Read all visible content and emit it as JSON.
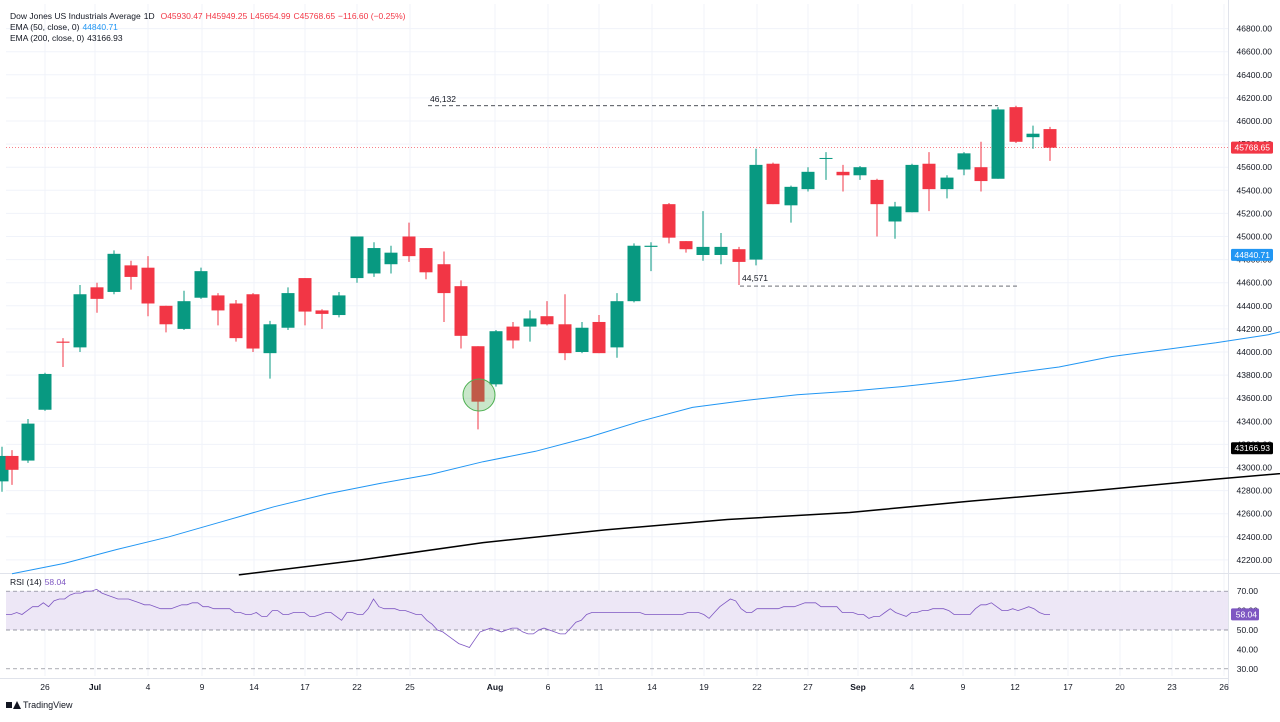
{
  "legend": {
    "symbol": "Dow Jones US Industrials Average",
    "interval": "1D",
    "open": "O45930.47",
    "high": "H45949.25",
    "low": "L45654.99",
    "close": "C45768.65",
    "change": "−116.60 (−0.25%)",
    "ema50_label": "EMA (50, close, 0)",
    "ema50_value": "44840.71",
    "ema200_label": "EMA (200, close, 0)",
    "ema200_value": "43166.93",
    "rsi_label": "RSI (14)",
    "rsi_value": "58.04"
  },
  "colors": {
    "up": "#089981",
    "down": "#f23645",
    "ema50": "#2196f3",
    "ema200": "#000000",
    "rsi": "#7e57c2",
    "rsi_band": "#ede7f6",
    "highlight": "#4caf50"
  },
  "branding": {
    "logo_text": "TradingView"
  },
  "chart_data": {
    "type": "candlestick",
    "title": "Dow Jones US Industrials Average, 1D",
    "price_axis": {
      "ticks": [
        "46800.00",
        "46600.00",
        "46400.00",
        "46200.00",
        "46000.00",
        "45800.00",
        "45600.00",
        "45400.00",
        "45200.00",
        "45000.00",
        "44800.00",
        "44600.00",
        "44400.00",
        "44200.00",
        "44000.00",
        "43800.00",
        "43600.00",
        "43400.00",
        "43200.00",
        "43000.00",
        "42800.00",
        "42600.00",
        "42400.00",
        "42200.00"
      ],
      "range": [
        42100,
        46950
      ]
    },
    "time_axis": {
      "labels": [
        "26",
        "Jul",
        "4",
        "9",
        "14",
        "17",
        "22",
        "25",
        "Aug",
        "6",
        "11",
        "14",
        "19",
        "22",
        "27",
        "Sep",
        "4",
        "9",
        "12",
        "17",
        "20",
        "23",
        "26"
      ],
      "bold": [
        "Jul",
        "Aug",
        "Sep"
      ]
    },
    "candles": [
      {
        "o": 42880,
        "h": 43180,
        "l": 42790,
        "c": 43100
      },
      {
        "o": 43100,
        "h": 43150,
        "l": 42850,
        "c": 42980
      },
      {
        "o": 43060,
        "h": 43420,
        "l": 43040,
        "c": 43380
      },
      {
        "o": 43500,
        "h": 43820,
        "l": 43490,
        "c": 43810
      },
      {
        "o": 44090,
        "h": 44120,
        "l": 43870,
        "c": 44080
      },
      {
        "o": 44040,
        "h": 44580,
        "l": 44000,
        "c": 44500
      },
      {
        "o": 44560,
        "h": 44600,
        "l": 44340,
        "c": 44460
      },
      {
        "o": 44520,
        "h": 44880,
        "l": 44500,
        "c": 44850
      },
      {
        "o": 44750,
        "h": 44790,
        "l": 44540,
        "c": 44650
      },
      {
        "o": 44730,
        "h": 44830,
        "l": 44310,
        "c": 44420
      },
      {
        "o": 44400,
        "h": 44400,
        "l": 44170,
        "c": 44240
      },
      {
        "o": 44200,
        "h": 44530,
        "l": 44190,
        "c": 44440
      },
      {
        "o": 44470,
        "h": 44730,
        "l": 44460,
        "c": 44700
      },
      {
        "o": 44490,
        "h": 44510,
        "l": 44230,
        "c": 44360
      },
      {
        "o": 44420,
        "h": 44450,
        "l": 44090,
        "c": 44120
      },
      {
        "o": 44500,
        "h": 44510,
        "l": 44000,
        "c": 44030
      },
      {
        "o": 43990,
        "h": 44270,
        "l": 43770,
        "c": 44240
      },
      {
        "o": 44210,
        "h": 44560,
        "l": 44190,
        "c": 44510
      },
      {
        "o": 44640,
        "h": 44640,
        "l": 44230,
        "c": 44350
      },
      {
        "o": 44360,
        "h": 44370,
        "l": 44200,
        "c": 44330
      },
      {
        "o": 44320,
        "h": 44520,
        "l": 44300,
        "c": 44490
      },
      {
        "o": 44640,
        "h": 45000,
        "l": 44600,
        "c": 45000
      },
      {
        "o": 44680,
        "h": 44950,
        "l": 44650,
        "c": 44900
      },
      {
        "o": 44760,
        "h": 44920,
        "l": 44680,
        "c": 44860
      },
      {
        "o": 45000,
        "h": 45120,
        "l": 44780,
        "c": 44830
      },
      {
        "o": 44900,
        "h": 44900,
        "l": 44630,
        "c": 44690
      },
      {
        "o": 44760,
        "h": 44870,
        "l": 44260,
        "c": 44510
      },
      {
        "o": 44570,
        "h": 44620,
        "l": 44030,
        "c": 44140
      },
      {
        "o": 44050,
        "h": 44050,
        "l": 43330,
        "c": 43570
      },
      {
        "o": 43720,
        "h": 44190,
        "l": 43700,
        "c": 44180
      },
      {
        "o": 44220,
        "h": 44260,
        "l": 44030,
        "c": 44100
      },
      {
        "o": 44220,
        "h": 44360,
        "l": 44090,
        "c": 44290
      },
      {
        "o": 44310,
        "h": 44440,
        "l": 44230,
        "c": 44240
      },
      {
        "o": 44240,
        "h": 44500,
        "l": 43930,
        "c": 43990
      },
      {
        "o": 44000,
        "h": 44260,
        "l": 43990,
        "c": 44210
      },
      {
        "o": 44260,
        "h": 44320,
        "l": 43990,
        "c": 43990
      },
      {
        "o": 44040,
        "h": 44510,
        "l": 43950,
        "c": 44440
      },
      {
        "o": 44440,
        "h": 44940,
        "l": 44430,
        "c": 44920
      },
      {
        "o": 44910,
        "h": 44950,
        "l": 44700,
        "c": 44920
      },
      {
        "o": 45280,
        "h": 45290,
        "l": 44940,
        "c": 44990
      },
      {
        "o": 44960,
        "h": 44960,
        "l": 44860,
        "c": 44890
      },
      {
        "o": 44840,
        "h": 45220,
        "l": 44790,
        "c": 44910
      },
      {
        "o": 44840,
        "h": 45030,
        "l": 44760,
        "c": 44910
      },
      {
        "o": 44890,
        "h": 44910,
        "l": 44580,
        "c": 44780
      },
      {
        "o": 44800,
        "h": 45760,
        "l": 44750,
        "c": 45620
      },
      {
        "o": 45630,
        "h": 45640,
        "l": 45280,
        "c": 45280
      },
      {
        "o": 45270,
        "h": 45440,
        "l": 45120,
        "c": 45430
      },
      {
        "o": 45410,
        "h": 45600,
        "l": 45390,
        "c": 45560
      },
      {
        "o": 45680,
        "h": 45730,
        "l": 45490,
        "c": 45680
      },
      {
        "o": 45560,
        "h": 45620,
        "l": 45390,
        "c": 45530
      },
      {
        "o": 45530,
        "h": 45610,
        "l": 45490,
        "c": 45600
      },
      {
        "o": 45490,
        "h": 45500,
        "l": 45000,
        "c": 45280
      },
      {
        "o": 45130,
        "h": 45300,
        "l": 44980,
        "c": 45260
      },
      {
        "o": 45210,
        "h": 45630,
        "l": 45210,
        "c": 45620
      },
      {
        "o": 45630,
        "h": 45730,
        "l": 45220,
        "c": 45410
      },
      {
        "o": 45410,
        "h": 45530,
        "l": 45330,
        "c": 45510
      },
      {
        "o": 45580,
        "h": 45730,
        "l": 45530,
        "c": 45720
      },
      {
        "o": 45600,
        "h": 45820,
        "l": 45390,
        "c": 45480
      },
      {
        "o": 45500,
        "h": 46120,
        "l": 45500,
        "c": 46100
      },
      {
        "o": 46120,
        "h": 46132,
        "l": 45810,
        "c": 45820
      },
      {
        "o": 45860,
        "h": 45960,
        "l": 45760,
        "c": 45890
      },
      {
        "o": 45930,
        "h": 45949,
        "l": 45655,
        "c": 45769
      }
    ],
    "ema50": [
      {
        "i": 0,
        "v": 42080
      },
      {
        "i": 3,
        "v": 42170
      },
      {
        "i": 6,
        "v": 42290
      },
      {
        "i": 9,
        "v": 42400
      },
      {
        "i": 12,
        "v": 42530
      },
      {
        "i": 15,
        "v": 42660
      },
      {
        "i": 18,
        "v": 42770
      },
      {
        "i": 21,
        "v": 42860
      },
      {
        "i": 24,
        "v": 42940
      },
      {
        "i": 27,
        "v": 43050
      },
      {
        "i": 30,
        "v": 43140
      },
      {
        "i": 33,
        "v": 43260
      },
      {
        "i": 36,
        "v": 43400
      },
      {
        "i": 39,
        "v": 43520
      },
      {
        "i": 42,
        "v": 43580
      },
      {
        "i": 45,
        "v": 43630
      },
      {
        "i": 48,
        "v": 43660
      },
      {
        "i": 51,
        "v": 43700
      },
      {
        "i": 54,
        "v": 43750
      },
      {
        "i": 57,
        "v": 43810
      },
      {
        "i": 60,
        "v": 43870
      },
      {
        "i": 63,
        "v": 43960
      },
      {
        "i": 66,
        "v": 44020
      },
      {
        "i": 69,
        "v": 44080
      },
      {
        "i": 72,
        "v": 44150
      },
      {
        "i": 75,
        "v": 44260
      },
      {
        "i": 78,
        "v": 44380
      },
      {
        "i": 81,
        "v": 44460
      },
      {
        "i": 84,
        "v": 44560
      },
      {
        "i": 87,
        "v": 44680
      },
      {
        "i": 90,
        "v": 44790
      },
      {
        "i": 92,
        "v": 44841
      }
    ],
    "ema200": [
      {
        "i": 13,
        "v": 42070
      },
      {
        "i": 20,
        "v": 42200
      },
      {
        "i": 27,
        "v": 42350
      },
      {
        "i": 34,
        "v": 42460
      },
      {
        "i": 41,
        "v": 42550
      },
      {
        "i": 48,
        "v": 42610
      },
      {
        "i": 55,
        "v": 42710
      },
      {
        "i": 62,
        "v": 42800
      },
      {
        "i": 69,
        "v": 42900
      },
      {
        "i": 76,
        "v": 42990
      },
      {
        "i": 83,
        "v": 43060
      },
      {
        "i": 90,
        "v": 43140
      },
      {
        "i": 92,
        "v": 43167
      }
    ],
    "rsi": {
      "levels": [
        "70.00",
        "60.00",
        "50.00",
        "40.00",
        "30.00"
      ],
      "range": [
        28,
        72
      ],
      "band": [
        50,
        70
      ],
      "values": [
        58,
        58,
        59,
        58,
        60,
        62,
        62,
        64,
        62,
        65,
        66,
        66,
        68,
        69,
        69,
        70,
        70,
        71,
        69,
        68,
        67,
        66,
        66,
        66,
        65,
        64,
        63,
        63,
        62,
        61,
        61,
        61,
        62,
        63,
        63,
        64,
        64,
        62,
        62,
        61,
        61,
        61,
        61,
        59,
        59,
        58,
        58,
        59,
        57,
        57,
        60,
        60,
        58,
        58,
        59,
        59,
        59,
        57,
        57,
        58,
        59,
        59,
        57,
        55,
        59,
        59,
        58,
        58,
        61,
        66,
        62,
        61,
        61,
        61,
        60,
        60,
        59,
        58,
        58,
        55,
        53,
        50,
        49,
        47,
        45,
        43,
        42,
        41,
        45,
        49,
        50,
        51,
        50,
        49,
        50,
        51,
        51,
        49,
        48,
        48,
        50,
        51,
        50,
        49,
        48,
        48,
        51,
        54,
        55,
        58,
        59,
        59,
        59,
        59,
        59,
        59,
        59,
        59,
        59,
        59,
        58,
        58,
        58,
        58,
        58,
        58,
        58,
        58,
        59,
        59,
        59,
        58,
        56,
        59,
        62,
        64,
        66,
        65,
        61,
        59,
        59,
        61,
        61,
        61,
        61,
        61,
        62,
        62,
        62,
        63,
        64,
        64,
        64,
        62,
        62,
        62,
        62,
        59,
        59,
        59,
        58,
        58,
        56,
        57,
        57,
        59,
        61,
        59,
        58,
        57,
        59,
        59,
        60,
        60,
        61,
        61,
        61,
        60,
        58,
        58,
        58,
        58,
        61,
        63,
        63,
        64,
        62,
        60,
        60,
        61,
        60,
        61,
        62,
        61,
        59,
        58,
        58
      ]
    },
    "annotations": [
      {
        "text": "46,132",
        "value": 46132
      },
      {
        "text": "44,571",
        "value": 44571
      }
    ],
    "last_price_label": "45768.65"
  }
}
